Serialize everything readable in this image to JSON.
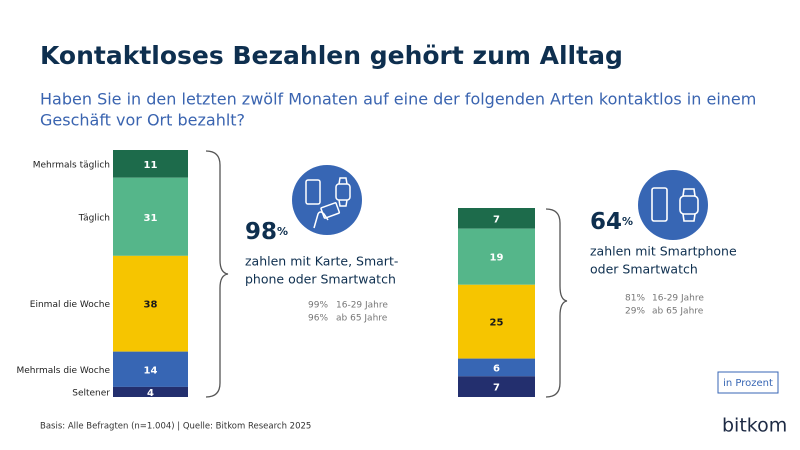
{
  "title": "Kontaktloses Bezahlen gehört zum Alltag",
  "subtitle": [
    "Haben Sie in den letzten zwölf Monaten auf eine der folgenden Arten kontaktlos in einem",
    "Geschäft vor Ort bezahlt?"
  ],
  "chart_data": [
    {
      "type": "stacked_bar",
      "series": [
        {
          "name": "Mehrmals täglich",
          "color": "#1d6b4b",
          "values": [
            11
          ]
        },
        {
          "name": "Täglich",
          "color": "#55b68a",
          "values": [
            31
          ]
        },
        {
          "name": "Einmal die Woche",
          "color": "#f6c500",
          "values": [
            38
          ]
        },
        {
          "name": "Mehrmals die Woche",
          "color": "#3766b4",
          "values": [
            14
          ]
        },
        {
          "name": "Seltener",
          "color": "#232f6e",
          "values": [
            4
          ]
        }
      ],
      "headline": {
        "value": 98,
        "unit": "%"
      },
      "caption": [
        "zahlen mit Karte, Smart-",
        "phone oder Smartwatch"
      ],
      "breakdown": [
        {
          "share": {
            "value": 99,
            "label": "99%"
          },
          "group": "16-29 Jahre"
        },
        {
          "share": {
            "value": 96,
            "label": "96%"
          },
          "group": "ab 65 Jahre"
        }
      ]
    },
    {
      "type": "stacked_bar",
      "series": [
        {
          "color": "#1d6b4b",
          "values": [
            7
          ]
        },
        {
          "color": "#55b68a",
          "values": [
            19
          ]
        },
        {
          "color": "#f6c500",
          "values": [
            25
          ]
        },
        {
          "color": "#3766b4",
          "values": [
            6
          ]
        },
        {
          "color": "#232f6e",
          "values": [
            7
          ]
        }
      ],
      "headline": {
        "value": 64,
        "unit": "%"
      },
      "caption": [
        "zahlen mit Smartphone",
        "oder Smartwatch"
      ],
      "breakdown": [
        {
          "share": {
            "value": 81,
            "label": "81%"
          },
          "group": "16-29 Jahre"
        },
        {
          "share": {
            "value": 29,
            "label": "29%"
          },
          "group": "ab 65 Jahre"
        }
      ]
    }
  ],
  "unit_note": "in Prozent",
  "footnote": "Basis: Alle Befragten (n=1.004) | Quelle: Bitkom Research 2025",
  "logo": "bitkom"
}
